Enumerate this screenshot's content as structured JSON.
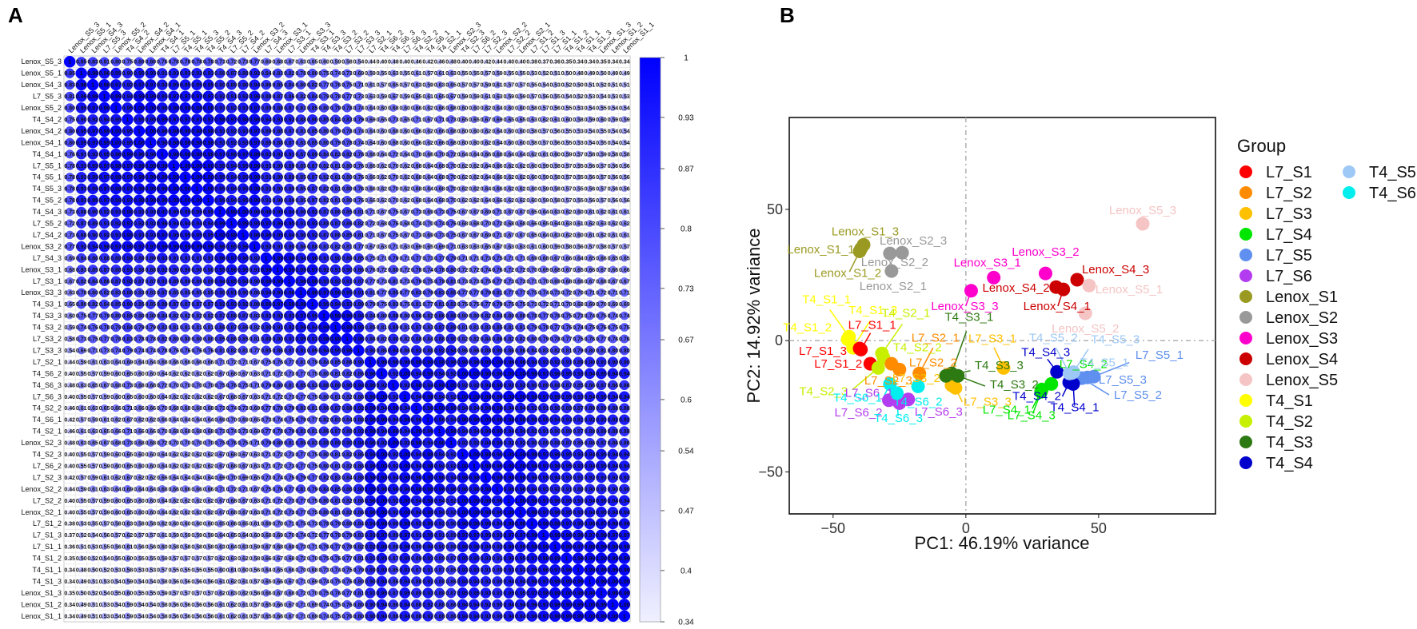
{
  "panels": {
    "a_label": "A",
    "b_label": "B"
  },
  "chart_data": [
    {
      "type": "heatmap",
      "title": "",
      "samples": [
        "Lenox_S5_3",
        "Lenox_S5_1",
        "Lenox_S4_3",
        "L7_S5_3",
        "Lenox_S5_2",
        "T4_S4_2",
        "Lenox_S4_2",
        "Lenox_S4_1",
        "T4_S4_1",
        "L7_S5_1",
        "T4_S5_1",
        "T4_S5_3",
        "T4_S5_2",
        "T4_S4_3",
        "L7_S5_2",
        "L7_S4_2",
        "Lenox_S3_2",
        "L7_S4_3",
        "Lenox_S3_1",
        "L7_S3_1",
        "Lenox_S3_3",
        "T4_S3_1",
        "T4_S3_3",
        "T4_S3_2",
        "L7_S3_2",
        "L7_S3_3",
        "L7_S2_1",
        "T4_S6_2",
        "T4_S6_3",
        "L7_S6_3",
        "T4_S2_2",
        "T4_S6_1",
        "T4_S2_1",
        "Lenox_S2_3",
        "T4_S2_3",
        "L7_S6_2",
        "L7_S2_3",
        "Lenox_S2_2",
        "L7_S2_2",
        "Lenox_S2_1",
        "L7_S1_2",
        "L7_S1_3",
        "L7_S1_1",
        "T4_S1_2",
        "T4_S1_1",
        "T4_S1_3",
        "Lenox_S1_3",
        "Lenox_S1_2",
        "Lenox_S1_1"
      ],
      "first_column": [
        1,
        0.85,
        0.83,
        0.81,
        0.8,
        0.75,
        0.8,
        0.8,
        0.76,
        0.78,
        0.78,
        0.78,
        0.78,
        0.73,
        0.72,
        0.73,
        0.77,
        0.69,
        0.68,
        0.67,
        0.63,
        0.65,
        0.6,
        0.59,
        0.58,
        0.54,
        0.44,
        0.4,
        0.48,
        0.4,
        0.46,
        0.42,
        0.46,
        0.48,
        0.4,
        0.4,
        0.42,
        0.44,
        0.4,
        0.4,
        0.38,
        0.37,
        0.36,
        0.35,
        0.33,
        0.34,
        0.35,
        0.34,
        0.34
      ],
      "colorbar_ticks": [
        "1",
        "0.93",
        "0.87",
        "0.8",
        "0.73",
        "0.67",
        "0.6",
        "0.54",
        "0.47",
        "0.4",
        "0.34"
      ],
      "range": [
        0.34,
        1
      ],
      "colors": {
        "low": "#f0f0ff",
        "high": "#0000ff"
      }
    },
    {
      "type": "scatter",
      "title": "",
      "xlabel": "PC1: 46.19% variance",
      "ylabel": "PC2: 14.92% variance",
      "xticks": [
        "-50",
        "0",
        "50"
      ],
      "yticks": [
        "50",
        "0",
        "-50"
      ],
      "xlim": [
        -66.5,
        94
      ],
      "ylim": [
        -66,
        85
      ],
      "legend_title": "Group",
      "legend_position": "right",
      "groups": [
        {
          "name": "L7_S1",
          "color": "#ff0000"
        },
        {
          "name": "L7_S2",
          "color": "#ff8c00"
        },
        {
          "name": "L7_S3",
          "color": "#ffc000"
        },
        {
          "name": "L7_S4",
          "color": "#00e600"
        },
        {
          "name": "L7_S5",
          "color": "#5f8fef"
        },
        {
          "name": "L7_S6",
          "color": "#b43cf0"
        },
        {
          "name": "Lenox_S1",
          "color": "#9a9a22"
        },
        {
          "name": "Lenox_S2",
          "color": "#999999"
        },
        {
          "name": "Lenox_S3",
          "color": "#ff00cc"
        },
        {
          "name": "Lenox_S4",
          "color": "#cc0000"
        },
        {
          "name": "Lenox_S5",
          "color": "#f5c4c4"
        },
        {
          "name": "T4_S1",
          "color": "#ffff00"
        },
        {
          "name": "T4_S2",
          "color": "#c6f000"
        },
        {
          "name": "T4_S3",
          "color": "#2e7a12"
        },
        {
          "name": "T4_S4",
          "color": "#0000cd"
        },
        {
          "name": "T4_S5",
          "color": "#9ec8f5"
        },
        {
          "name": "T4_S6",
          "color": "#00eeee"
        }
      ],
      "points": [
        {
          "label": "Lenox_S1_1",
          "group": "Lenox_S1",
          "x": -39.5,
          "y": 35
        },
        {
          "label": "Lenox_S1_2",
          "group": "Lenox_S1",
          "x": -40,
          "y": 34
        },
        {
          "label": "Lenox_S1_3",
          "group": "Lenox_S1",
          "x": -38.5,
          "y": 36.5
        },
        {
          "label": "Lenox_S2_1",
          "group": "Lenox_S2",
          "x": -28,
          "y": 26.5
        },
        {
          "label": "Lenox_S2_2",
          "group": "Lenox_S2",
          "x": -28.6,
          "y": 33.2
        },
        {
          "label": "Lenox_S2_3",
          "group": "Lenox_S2",
          "x": -24,
          "y": 33.5
        },
        {
          "label": "Lenox_S3_1",
          "group": "Lenox_S3",
          "x": 10.5,
          "y": 24
        },
        {
          "label": "Lenox_S3_2",
          "group": "Lenox_S3",
          "x": 30,
          "y": 25.6
        },
        {
          "label": "Lenox_S3_3",
          "group": "Lenox_S3",
          "x": 2,
          "y": 19
        },
        {
          "label": "Lenox_S4_1",
          "group": "Lenox_S4",
          "x": 36.7,
          "y": 19.5
        },
        {
          "label": "Lenox_S4_2",
          "group": "Lenox_S4",
          "x": 34,
          "y": 20.4
        },
        {
          "label": "Lenox_S4_3",
          "group": "Lenox_S4",
          "x": 41.9,
          "y": 23.2
        },
        {
          "label": "Lenox_S5_1",
          "group": "Lenox_S5",
          "x": 46.4,
          "y": 21
        },
        {
          "label": "Lenox_S5_2",
          "group": "Lenox_S5",
          "x": 45,
          "y": 10.4
        },
        {
          "label": "Lenox_S5_3",
          "group": "Lenox_S5",
          "x": 66.6,
          "y": 44.5
        },
        {
          "label": "T4_S1_1",
          "group": "T4_S1",
          "x": -44,
          "y": 1.5
        },
        {
          "label": "T4_S1_2",
          "group": "T4_S1",
          "x": -44.5,
          "y": 0.5
        },
        {
          "label": "T4_S1_3",
          "group": "T4_S1",
          "x": -42.5,
          "y": -2.7
        },
        {
          "label": "L7_S1_1",
          "group": "L7_S1",
          "x": -39.5,
          "y": -3.4
        },
        {
          "label": "L7_S1_2",
          "group": "L7_S1",
          "x": -36,
          "y": -8.8
        },
        {
          "label": "L7_S1_3",
          "group": "L7_S1",
          "x": -40,
          "y": -3
        },
        {
          "label": "T4_S2_1",
          "group": "T4_S2",
          "x": -31.6,
          "y": -4.9
        },
        {
          "label": "T4_S2_2",
          "group": "T4_S2",
          "x": -31,
          "y": -6.5
        },
        {
          "label": "T4_S2_3",
          "group": "T4_S2",
          "x": -33,
          "y": -10.4
        },
        {
          "label": "L7_S2_1",
          "group": "L7_S2",
          "x": -17.5,
          "y": -12.5
        },
        {
          "label": "L7_S2_2",
          "group": "L7_S2",
          "x": -25,
          "y": -11
        },
        {
          "label": "L7_S2_3",
          "group": "L7_S2",
          "x": -28,
          "y": -8.8
        },
        {
          "label": "L7_S3_1",
          "group": "L7_S3",
          "x": 14.2,
          "y": -10.4
        },
        {
          "label": "L7_S3_2",
          "group": "L7_S3",
          "x": -5.4,
          "y": -17
        },
        {
          "label": "L7_S3_3",
          "group": "L7_S3",
          "x": -3.9,
          "y": -18
        },
        {
          "label": "T4_S3_1",
          "group": "T4_S3",
          "x": -5.4,
          "y": -12.5
        },
        {
          "label": "T4_S3_2",
          "group": "T4_S3",
          "x": -3,
          "y": -13.4
        },
        {
          "label": "T4_S3_3",
          "group": "T4_S3",
          "x": -7.5,
          "y": -13.4
        },
        {
          "label": "L7_S4_1",
          "group": "L7_S4",
          "x": 28.6,
          "y": -18.6
        },
        {
          "label": "L7_S4_2",
          "group": "L7_S4",
          "x": 32.2,
          "y": -16.5
        },
        {
          "label": "L7_S4_3",
          "group": "L7_S4",
          "x": 28.3,
          "y": -19.5
        },
        {
          "label": "L7_S5_1",
          "group": "L7_S5",
          "x": 48.2,
          "y": -13.7
        },
        {
          "label": "L7_S5_2",
          "group": "L7_S5",
          "x": 43.7,
          "y": -14.3
        },
        {
          "label": "L7_S5_3",
          "group": "L7_S5",
          "x": 45.8,
          "y": -14
        },
        {
          "label": "L7_S6_1",
          "group": "L7_S6",
          "x": -25,
          "y": -23.8
        },
        {
          "label": "L7_S6_2",
          "group": "L7_S6",
          "x": -29,
          "y": -22.7
        },
        {
          "label": "L7_S6_3",
          "group": "L7_S6",
          "x": -21.7,
          "y": -22.4
        },
        {
          "label": "T4_S4_1",
          "group": "T4_S4",
          "x": 40.4,
          "y": -16.5
        },
        {
          "label": "T4_S4_2",
          "group": "T4_S4",
          "x": 38.9,
          "y": -15.9
        },
        {
          "label": "T4_S4_3",
          "group": "T4_S4",
          "x": 34.3,
          "y": -11.9
        },
        {
          "label": "T4_S5_1",
          "group": "T4_S5",
          "x": 40,
          "y": -12.3
        },
        {
          "label": "T4_S5_2",
          "group": "T4_S5",
          "x": 39,
          "y": -12.5
        },
        {
          "label": "T4_S5_3",
          "group": "T4_S5",
          "x": 40.5,
          "y": -12
        },
        {
          "label": "T4_S6_1",
          "group": "T4_S6",
          "x": -28.6,
          "y": -16.5
        },
        {
          "label": "T4_S6_2",
          "group": "T4_S6",
          "x": -18,
          "y": -17.4
        },
        {
          "label": "T4_S6_3",
          "group": "T4_S6",
          "x": -26,
          "y": -20
        }
      ]
    }
  ]
}
